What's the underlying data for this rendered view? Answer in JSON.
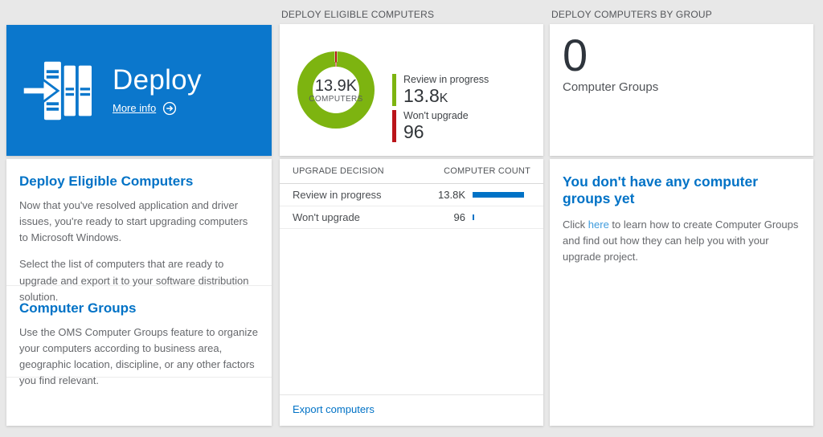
{
  "page": {
    "background": "#e8e8e8"
  },
  "column_headers": {
    "eligible": "DEPLOY ELIGIBLE COMPUTERS",
    "groups": "DEPLOY COMPUTERS BY GROUP"
  },
  "deploy_tile": {
    "title": "Deploy",
    "more_info": "More info"
  },
  "info_panel": {
    "section1": {
      "heading": "Deploy Eligible Computers",
      "p1": "Now that you've resolved application and driver issues, you're ready to start upgrading computers to Microsoft Windows.",
      "p2": "Select the list of computers that are ready to upgrade and export it to your software distribution solution."
    },
    "section2": {
      "heading": "Computer Groups",
      "p1": "Use the OMS Computer Groups feature to organize your computers according to business area, geographic location, discipline, or any other factors you find relevant."
    }
  },
  "chart_data": {
    "type": "pie",
    "title": "DEPLOY ELIGIBLE COMPUTERS",
    "center_value": "13.9K",
    "center_label": "COMPUTERS",
    "legend_position": "right",
    "segments": [
      {
        "label": "Review in progress",
        "value": 13800,
        "display_num": "13.8",
        "display_suffix": "K",
        "color": "#7db410"
      },
      {
        "label": "Won't upgrade",
        "value": 96,
        "display_num": "96",
        "display_suffix": "",
        "color": "#ba141a"
      }
    ]
  },
  "table": {
    "col_decision": "UPGRADE DECISION",
    "col_count": "COMPUTER COUNT",
    "rows": [
      {
        "decision": "Review in progress",
        "count": "13.8K",
        "value": 13800
      },
      {
        "decision": "Won't upgrade",
        "count": "96",
        "value": 96
      }
    ],
    "export_label": "Export computers"
  },
  "groups_tile": {
    "count": "0",
    "label": "Computer Groups"
  },
  "groups_panel": {
    "heading": "You don't have any computer groups yet",
    "before_link": "Click ",
    "link": "here",
    "after_link": " to learn how to create Computer Groups and find out how they can help you with your upgrade project."
  },
  "colors": {
    "tile_blue": "#0b77cc",
    "heading_blue": "#0072c6",
    "link_blue": "#0072c6",
    "inline_link_blue": "#3e9bdd",
    "bar_blue": "#0072c6",
    "chart_green": "#7db410",
    "chart_red": "#ba141a"
  }
}
